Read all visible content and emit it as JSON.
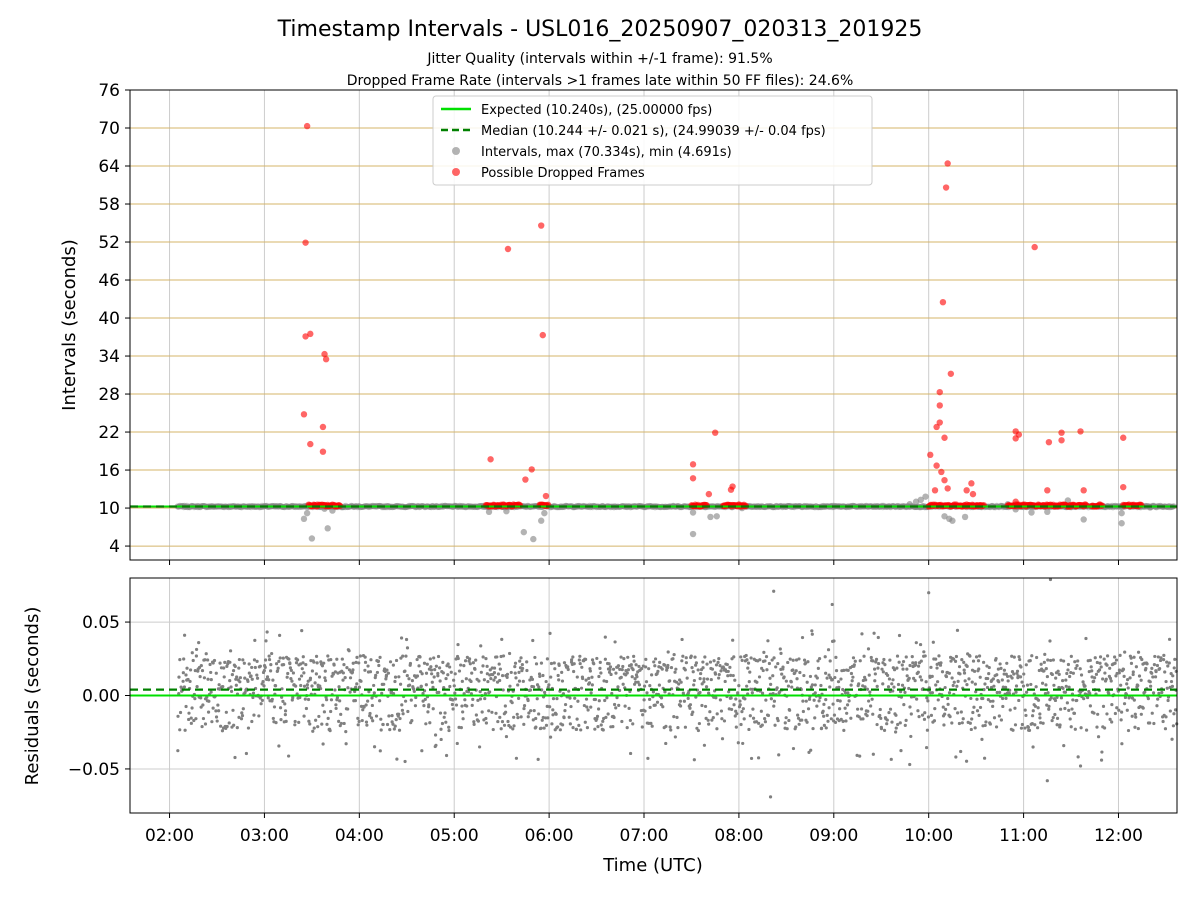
{
  "title": "Timestamp Intervals - USL016_20250907_020313_201925",
  "subtitle_1": "Jitter Quality (intervals within +/-1 frame): 91.5%",
  "subtitle_2": "Dropped Frame Rate (intervals >1 frames late within 50 FF files): 24.6%",
  "colors": {
    "expected": "#00e000",
    "median": "#008000",
    "intervals": "#808080",
    "dropped": "#ff0000",
    "hgrid_top": "#d4b46a",
    "grid": "#cccccc"
  },
  "chart_data": [
    {
      "type": "scatter",
      "ylabel": "Intervals (seconds)",
      "yticks": [
        4,
        10,
        16,
        22,
        28,
        34,
        40,
        46,
        52,
        58,
        64,
        70,
        76
      ],
      "ylim": [
        1.8,
        76
      ],
      "xlim": [
        "01:35",
        "12:37"
      ],
      "grid": true,
      "legend_position": "top-center",
      "legend": [
        "Expected (10.240s), (25.00000 fps)",
        "Median (10.244 +/- 0.021 s), (24.99039 +/- 0.04 fps)",
        "Intervals, max (70.334s), min (4.691s)",
        "Possible Dropped Frames"
      ],
      "expected_value": 10.24,
      "median_value": 10.244,
      "intervals_series": {
        "name": "Intervals, max (70.334s), min (4.691s)",
        "baseline": 10.24,
        "baseline_range": [
          "02:05",
          "12:35"
        ],
        "points": [
          {
            "x": "03:25",
            "y": 8.3
          },
          {
            "x": "03:27",
            "y": 9.2
          },
          {
            "x": "03:30",
            "y": 5.2
          },
          {
            "x": "03:38",
            "y": 9.9
          },
          {
            "x": "03:40",
            "y": 6.8
          },
          {
            "x": "03:43",
            "y": 9.6
          },
          {
            "x": "05:22",
            "y": 9.4
          },
          {
            "x": "05:33",
            "y": 9.5
          },
          {
            "x": "05:44",
            "y": 6.2
          },
          {
            "x": "05:50",
            "y": 5.1
          },
          {
            "x": "05:55",
            "y": 8.0
          },
          {
            "x": "05:57",
            "y": 9.2
          },
          {
            "x": "07:31",
            "y": 5.9
          },
          {
            "x": "07:31",
            "y": 9.3
          },
          {
            "x": "07:42",
            "y": 8.6
          },
          {
            "x": "07:46",
            "y": 8.7
          },
          {
            "x": "08:02",
            "y": 10.0
          },
          {
            "x": "09:48",
            "y": 10.6
          },
          {
            "x": "09:52",
            "y": 11.0
          },
          {
            "x": "09:55",
            "y": 11.3
          },
          {
            "x": "09:58",
            "y": 11.8
          },
          {
            "x": "10:10",
            "y": 8.7
          },
          {
            "x": "10:13",
            "y": 8.3
          },
          {
            "x": "10:15",
            "y": 8.0
          },
          {
            "x": "10:23",
            "y": 8.6
          },
          {
            "x": "10:50",
            "y": 10.6
          },
          {
            "x": "10:55",
            "y": 9.8
          },
          {
            "x": "11:05",
            "y": 9.3
          },
          {
            "x": "11:15",
            "y": 9.4
          },
          {
            "x": "11:28",
            "y": 11.2
          },
          {
            "x": "11:38",
            "y": 8.2
          },
          {
            "x": "12:02",
            "y": 9.2
          },
          {
            "x": "12:02",
            "y": 7.6
          },
          {
            "x": "12:20",
            "y": 10.1
          }
        ]
      },
      "dropped_series": {
        "name": "Possible Dropped Frames",
        "clusters": [
          {
            "from": "03:28",
            "to": "03:48",
            "y": 10.4
          },
          {
            "from": "05:20",
            "to": "05:42",
            "y": 10.4
          },
          {
            "from": "05:54",
            "to": "06:00",
            "y": 10.4
          },
          {
            "from": "07:30",
            "to": "07:40",
            "y": 10.4
          },
          {
            "from": "07:50",
            "to": "08:05",
            "y": 10.4
          },
          {
            "from": "10:00",
            "to": "10:35",
            "y": 10.4
          },
          {
            "from": "10:50",
            "to": "11:40",
            "y": 10.4
          },
          {
            "from": "11:43",
            "to": "11:50",
            "y": 10.4
          },
          {
            "from": "12:03",
            "to": "12:15",
            "y": 10.4
          }
        ],
        "points": [
          {
            "x": "03:27",
            "y": 70.3
          },
          {
            "x": "03:26",
            "y": 51.9
          },
          {
            "x": "03:26",
            "y": 37.1
          },
          {
            "x": "03:29",
            "y": 37.5
          },
          {
            "x": "03:25",
            "y": 24.8
          },
          {
            "x": "03:29",
            "y": 20.1
          },
          {
            "x": "03:38",
            "y": 34.3
          },
          {
            "x": "03:39",
            "y": 33.5
          },
          {
            "x": "03:37",
            "y": 22.8
          },
          {
            "x": "03:37",
            "y": 18.9
          },
          {
            "x": "05:23",
            "y": 17.7
          },
          {
            "x": "05:34",
            "y": 50.9
          },
          {
            "x": "05:55",
            "y": 54.6
          },
          {
            "x": "05:56",
            "y": 37.3
          },
          {
            "x": "05:49",
            "y": 16.1
          },
          {
            "x": "05:45",
            "y": 14.5
          },
          {
            "x": "05:58",
            "y": 11.9
          },
          {
            "x": "07:31",
            "y": 16.9
          },
          {
            "x": "07:31",
            "y": 14.7
          },
          {
            "x": "07:45",
            "y": 21.9
          },
          {
            "x": "07:41",
            "y": 12.2
          },
          {
            "x": "07:56",
            "y": 13.4
          },
          {
            "x": "07:55",
            "y": 12.9
          },
          {
            "x": "10:01",
            "y": 18.4
          },
          {
            "x": "10:05",
            "y": 16.7
          },
          {
            "x": "10:05",
            "y": 22.8
          },
          {
            "x": "10:07",
            "y": 23.5
          },
          {
            "x": "10:07",
            "y": 26.2
          },
          {
            "x": "10:07",
            "y": 28.3
          },
          {
            "x": "10:09",
            "y": 42.5
          },
          {
            "x": "10:11",
            "y": 60.6
          },
          {
            "x": "10:12",
            "y": 64.4
          },
          {
            "x": "10:14",
            "y": 31.2
          },
          {
            "x": "10:10",
            "y": 21.1
          },
          {
            "x": "10:08",
            "y": 15.7
          },
          {
            "x": "10:10",
            "y": 14.4
          },
          {
            "x": "10:12",
            "y": 13.1
          },
          {
            "x": "10:04",
            "y": 12.8
          },
          {
            "x": "10:27",
            "y": 13.9
          },
          {
            "x": "10:28",
            "y": 12.2
          },
          {
            "x": "10:24",
            "y": 12.8
          },
          {
            "x": "10:55",
            "y": 22.1
          },
          {
            "x": "10:57",
            "y": 21.6
          },
          {
            "x": "10:55",
            "y": 21.0
          },
          {
            "x": "10:55",
            "y": 11.0
          },
          {
            "x": "11:07",
            "y": 51.2
          },
          {
            "x": "11:16",
            "y": 20.4
          },
          {
            "x": "11:15",
            "y": 12.8
          },
          {
            "x": "11:24",
            "y": 21.9
          },
          {
            "x": "11:24",
            "y": 20.7
          },
          {
            "x": "11:36",
            "y": 22.1
          },
          {
            "x": "11:38",
            "y": 12.8
          },
          {
            "x": "12:03",
            "y": 21.1
          },
          {
            "x": "12:03",
            "y": 13.3
          }
        ]
      }
    },
    {
      "type": "scatter",
      "ylabel": "Residuals (seconds)",
      "xlabel": "Time (UTC)",
      "yticks": [
        -0.05,
        0.0,
        0.05
      ],
      "ytick_labels": [
        "−0.05",
        "0.00",
        "0.05"
      ],
      "ylim": [
        -0.08,
        0.08
      ],
      "xlim": [
        "01:35",
        "12:37"
      ],
      "xticks": [
        "02:00",
        "03:00",
        "04:00",
        "05:00",
        "06:00",
        "07:00",
        "08:00",
        "09:00",
        "10:00",
        "11:00",
        "12:00"
      ],
      "grid": true,
      "expected_value": 0.0,
      "median_value": 0.004,
      "residuals_series": {
        "name": "Residuals",
        "x_range": [
          "02:05",
          "12:37"
        ],
        "y_range": [
          -0.07,
          0.08
        ],
        "count": 2100
      }
    }
  ]
}
